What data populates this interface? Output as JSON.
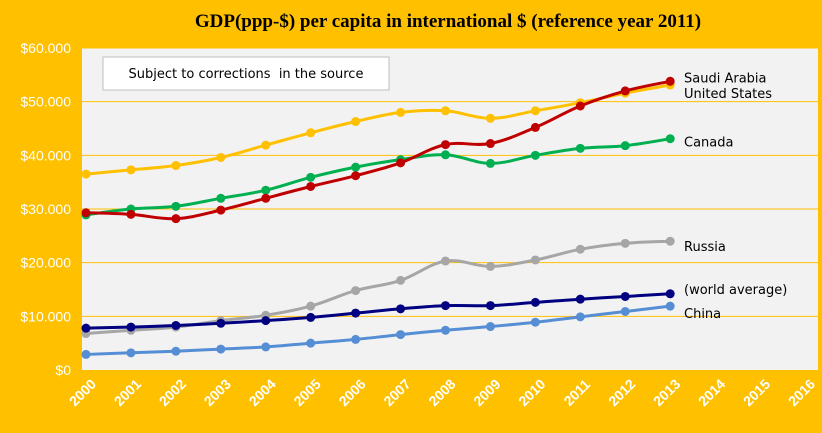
{
  "chart_data": {
    "type": "line",
    "title": "GDP(ppp-$) per capita in international $ (reference year 2011)",
    "annotation": "Subject to corrections  in the source",
    "x_categories": [
      "2000",
      "2001",
      "2002",
      "2003",
      "2004",
      "2005",
      "2006",
      "2007",
      "2008",
      "2009",
      "2010",
      "2011",
      "2012",
      "2013",
      "2014",
      "2015",
      "2016"
    ],
    "ylim": [
      0,
      60000
    ],
    "y_ticks": [
      {
        "value": 0,
        "label": "$0"
      },
      {
        "value": 10000,
        "label": "$10.000"
      },
      {
        "value": 20000,
        "label": "$20.000"
      },
      {
        "value": 30000,
        "label": "$30.000"
      },
      {
        "value": 40000,
        "label": "$40.000"
      },
      {
        "value": 50000,
        "label": "$50.000"
      },
      {
        "value": 60000,
        "label": "$60.000"
      }
    ],
    "grid": true,
    "series": [
      {
        "name": "Saudi Arabia",
        "color": "#c00000",
        "values": [
          29300,
          29000,
          28200,
          29800,
          32000,
          34200,
          36200,
          38600,
          42000,
          42200,
          45200,
          49200,
          52000,
          53800
        ]
      },
      {
        "name": "United States",
        "color": "#ffc000",
        "values": [
          36500,
          37300,
          38100,
          39600,
          41900,
          44200,
          46300,
          48000,
          48300,
          46900,
          48300,
          49800,
          51600,
          53100
        ]
      },
      {
        "name": "Canada",
        "color": "#00b050",
        "values": [
          28900,
          30000,
          30500,
          32000,
          33500,
          35900,
          37800,
          39200,
          40100,
          38500,
          40000,
          41300,
          41800,
          43100
        ]
      },
      {
        "name": "Russia",
        "color": "#a6a6a6",
        "values": [
          6800,
          7400,
          8000,
          9200,
          10200,
          11900,
          14800,
          16700,
          20300,
          19300,
          20500,
          22500,
          23600,
          24000
        ]
      },
      {
        "name": "(world average)",
        "color": "#000080",
        "values": [
          7800,
          8000,
          8300,
          8700,
          9200,
          9800,
          10600,
          11400,
          12000,
          12000,
          12600,
          13200,
          13700,
          14200
        ]
      },
      {
        "name": "China",
        "color": "#558ed5",
        "values": [
          2900,
          3200,
          3500,
          3900,
          4300,
          5000,
          5700,
          6600,
          7400,
          8100,
          8900,
          9900,
          10900,
          11900
        ]
      }
    ]
  }
}
